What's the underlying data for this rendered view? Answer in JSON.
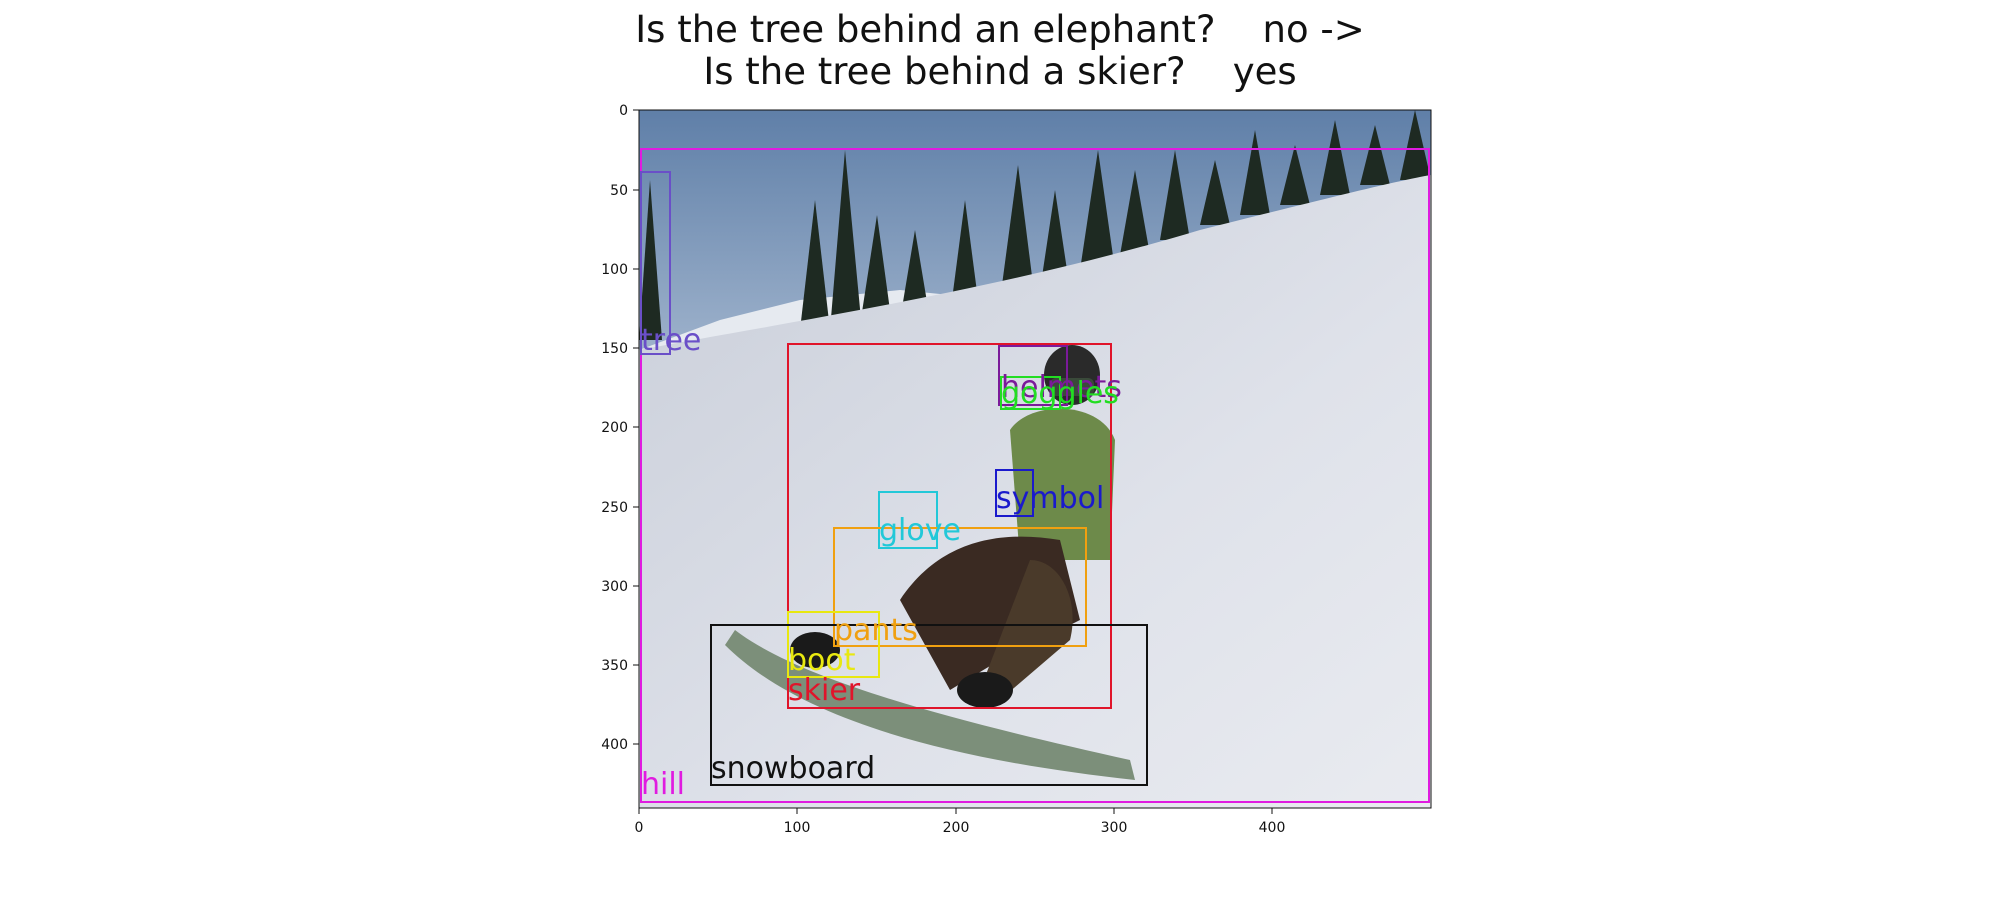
{
  "title": {
    "line1": "Is the tree behind an elephant?    no ->",
    "line2": "Is the tree behind a skier?    yes"
  },
  "axes": {
    "xticks": [
      "0",
      "100",
      "200",
      "300",
      "400"
    ],
    "yticks": [
      "0",
      "50",
      "100",
      "150",
      "200",
      "250",
      "300",
      "350",
      "400"
    ]
  },
  "photo": {
    "description_icon": "skier-on-snowy-slope-photo"
  },
  "annotations": [
    {
      "label": "hill",
      "color": "#e01be0"
    },
    {
      "label": "tree",
      "color": "#6a4fc8"
    },
    {
      "label": "skier",
      "color": "#e0142a"
    },
    {
      "label": "helmets",
      "color": "#7b1a9a"
    },
    {
      "label": "goggles",
      "color": "#22dd22"
    },
    {
      "label": "symbol",
      "color": "#1a1acc"
    },
    {
      "label": "glove",
      "color": "#22c8d8"
    },
    {
      "label": "pants",
      "color": "#f0a010"
    },
    {
      "label": "boot",
      "color": "#e8e810"
    },
    {
      "label": "snowboard",
      "color": "#111111"
    }
  ]
}
